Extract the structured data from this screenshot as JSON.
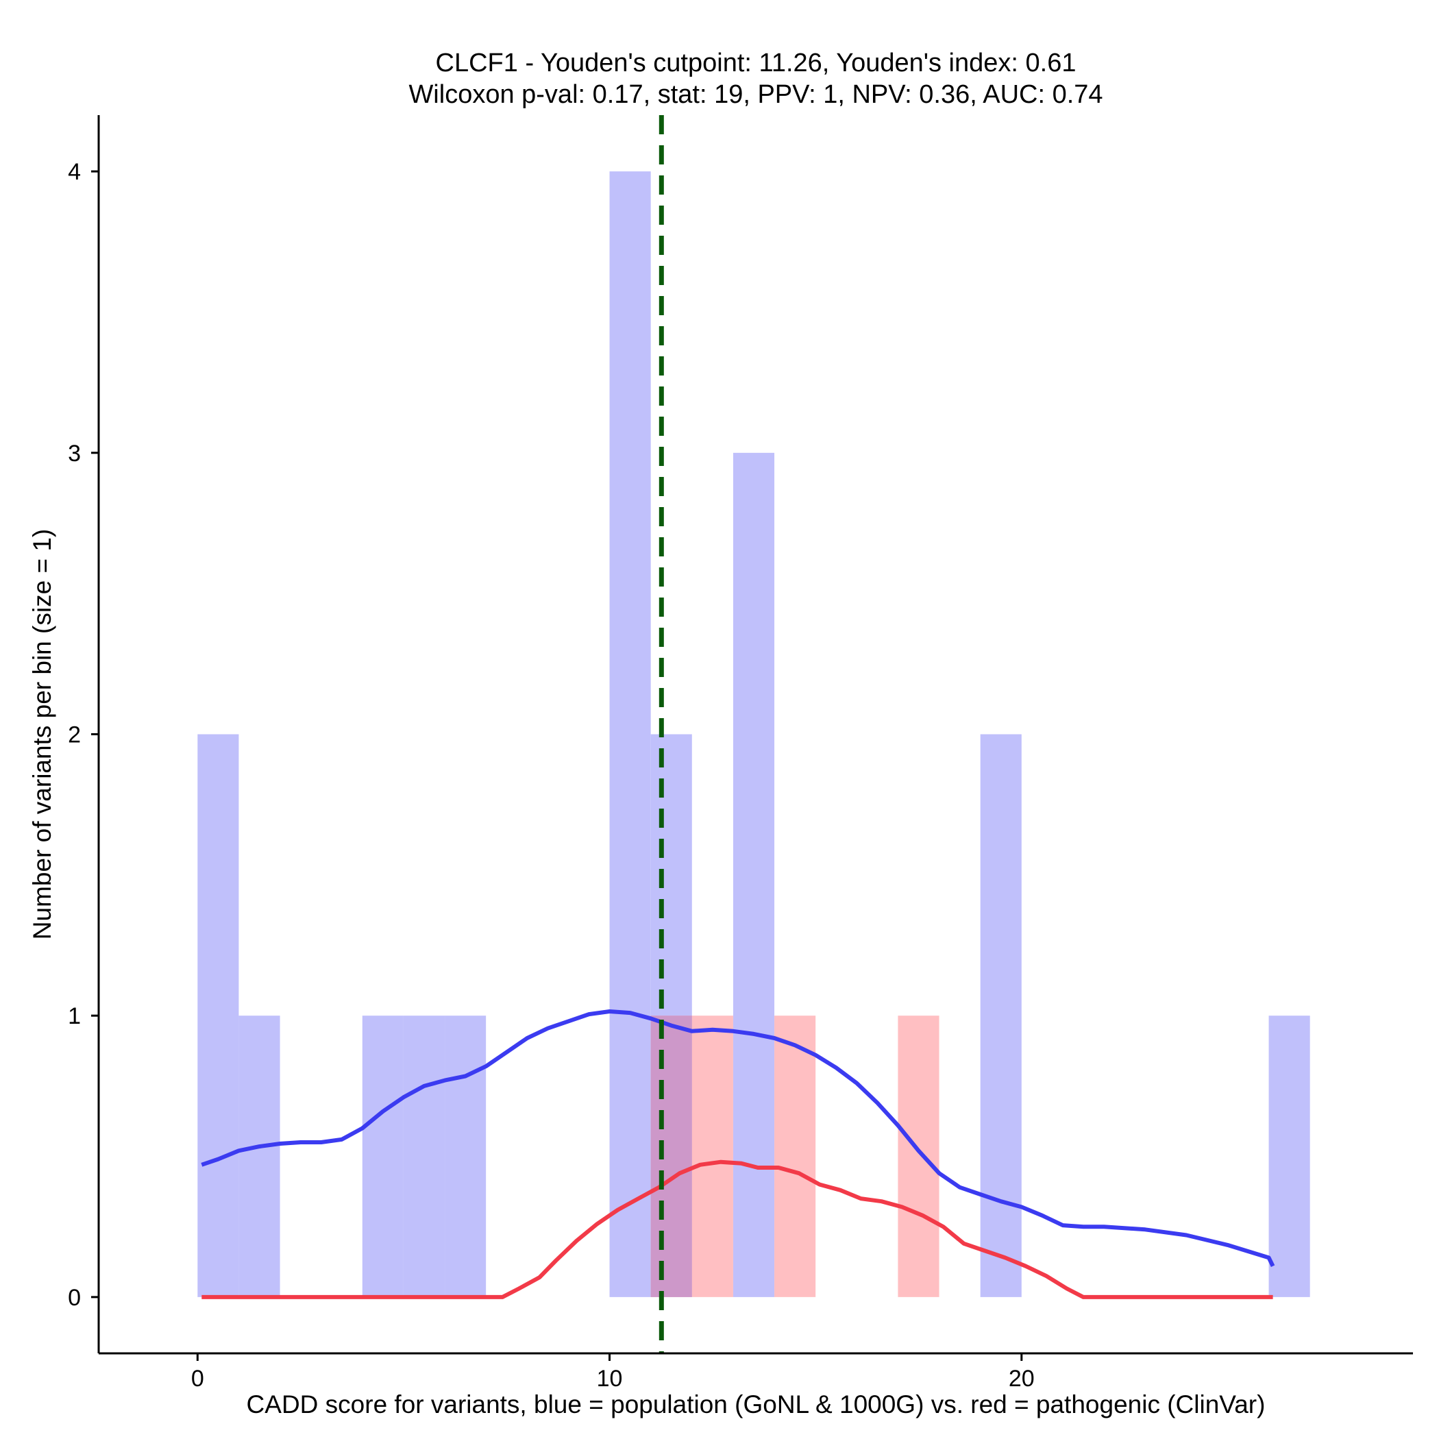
{
  "chart_data": {
    "type": "histogram",
    "title_line1": "CLCF1 - Youden's cutpoint: 11.26, Youden's index: 0.61",
    "title_line2": "Wilcoxon p-val: 0.17, stat: 19, PPV: 1, NPV: 0.36, AUC: 0.74",
    "xlabel": "CADD score for variants, blue = population (GoNL & 1000G) vs. red = pathogenic (ClinVar)",
    "ylabel": "Number of variants per bin (size = 1)",
    "xlim": [
      -2.4,
      29.5
    ],
    "ylim": [
      -0.2,
      4.2
    ],
    "x_ticks": [
      0,
      10,
      20
    ],
    "y_ticks": [
      0,
      1,
      2,
      3,
      4
    ],
    "bin_size": 1,
    "cutpoint": 11.26,
    "colors": {
      "population_bar": "#c0c0fb",
      "pathogenic_bar": "#ffbfc2",
      "overlap_bar": "#cd98c9",
      "population_line": "#3b3bf0",
      "pathogenic_line": "#f23a48",
      "cutpoint_line": "#0b5a0b"
    },
    "series": [
      {
        "name": "population (GoNL & 1000G)",
        "bins": [
          {
            "x0": 0,
            "x1": 1,
            "count": 2
          },
          {
            "x0": 1,
            "x1": 2,
            "count": 1
          },
          {
            "x0": 4,
            "x1": 5,
            "count": 1
          },
          {
            "x0": 5,
            "x1": 6,
            "count": 1
          },
          {
            "x0": 6,
            "x1": 7,
            "count": 1
          },
          {
            "x0": 10,
            "x1": 11,
            "count": 4
          },
          {
            "x0": 11,
            "x1": 12,
            "count": 2
          },
          {
            "x0": 13,
            "x1": 14,
            "count": 3
          },
          {
            "x0": 19,
            "x1": 20,
            "count": 2
          },
          {
            "x0": 26,
            "x1": 27,
            "count": 1
          }
        ],
        "density_curve": [
          [
            0.1,
            0.47
          ],
          [
            0.5,
            0.49
          ],
          [
            1.0,
            0.52
          ],
          [
            1.5,
            0.535
          ],
          [
            2.0,
            0.545
          ],
          [
            2.5,
            0.55
          ],
          [
            3.0,
            0.55
          ],
          [
            3.5,
            0.56
          ],
          [
            4.0,
            0.6
          ],
          [
            4.5,
            0.66
          ],
          [
            5.0,
            0.71
          ],
          [
            5.5,
            0.75
          ],
          [
            6.0,
            0.77
          ],
          [
            6.5,
            0.785
          ],
          [
            7.0,
            0.82
          ],
          [
            7.5,
            0.87
          ],
          [
            8.0,
            0.92
          ],
          [
            8.5,
            0.955
          ],
          [
            9.0,
            0.98
          ],
          [
            9.5,
            1.005
          ],
          [
            10.0,
            1.015
          ],
          [
            10.5,
            1.01
          ],
          [
            11.0,
            0.99
          ],
          [
            11.5,
            0.965
          ],
          [
            12.0,
            0.945
          ],
          [
            12.5,
            0.95
          ],
          [
            13.0,
            0.945
          ],
          [
            13.5,
            0.935
          ],
          [
            14.0,
            0.92
          ],
          [
            14.5,
            0.895
          ],
          [
            15.0,
            0.86
          ],
          [
            15.5,
            0.815
          ],
          [
            16.0,
            0.76
          ],
          [
            16.5,
            0.69
          ],
          [
            17.0,
            0.61
          ],
          [
            17.5,
            0.52
          ],
          [
            18.0,
            0.44
          ],
          [
            18.5,
            0.39
          ],
          [
            19.0,
            0.365
          ],
          [
            19.5,
            0.34
          ],
          [
            20.0,
            0.32
          ],
          [
            20.5,
            0.29
          ],
          [
            21.0,
            0.255
          ],
          [
            21.5,
            0.25
          ],
          [
            22.0,
            0.25
          ],
          [
            23.0,
            0.24
          ],
          [
            24.0,
            0.22
          ],
          [
            25.0,
            0.185
          ],
          [
            26.0,
            0.14
          ],
          [
            26.1,
            0.11
          ]
        ]
      },
      {
        "name": "pathogenic (ClinVar)",
        "bins": [
          {
            "x0": 11,
            "x1": 12,
            "count": 1
          },
          {
            "x0": 12,
            "x1": 13,
            "count": 1
          },
          {
            "x0": 14,
            "x1": 15,
            "count": 1
          },
          {
            "x0": 17,
            "x1": 18,
            "count": 1
          }
        ],
        "density_curve": [
          [
            0.1,
            0.0
          ],
          [
            2.0,
            0.0
          ],
          [
            4.0,
            0.0
          ],
          [
            6.0,
            0.0
          ],
          [
            7.4,
            0.0
          ],
          [
            7.8,
            0.03
          ],
          [
            8.3,
            0.07
          ],
          [
            8.7,
            0.13
          ],
          [
            9.2,
            0.2
          ],
          [
            9.7,
            0.26
          ],
          [
            10.2,
            0.31
          ],
          [
            10.7,
            0.35
          ],
          [
            11.2,
            0.39
          ],
          [
            11.7,
            0.44
          ],
          [
            12.2,
            0.47
          ],
          [
            12.7,
            0.48
          ],
          [
            13.2,
            0.475
          ],
          [
            13.6,
            0.46
          ],
          [
            14.1,
            0.46
          ],
          [
            14.6,
            0.44
          ],
          [
            15.1,
            0.4
          ],
          [
            15.6,
            0.38
          ],
          [
            16.1,
            0.35
          ],
          [
            16.6,
            0.34
          ],
          [
            17.1,
            0.32
          ],
          [
            17.6,
            0.29
          ],
          [
            18.1,
            0.25
          ],
          [
            18.6,
            0.19
          ],
          [
            19.1,
            0.165
          ],
          [
            19.6,
            0.14
          ],
          [
            20.1,
            0.11
          ],
          [
            20.6,
            0.075
          ],
          [
            21.1,
            0.03
          ],
          [
            21.5,
            0.0
          ],
          [
            23.0,
            0.0
          ],
          [
            25.0,
            0.0
          ],
          [
            26.1,
            0.0
          ]
        ]
      }
    ]
  }
}
